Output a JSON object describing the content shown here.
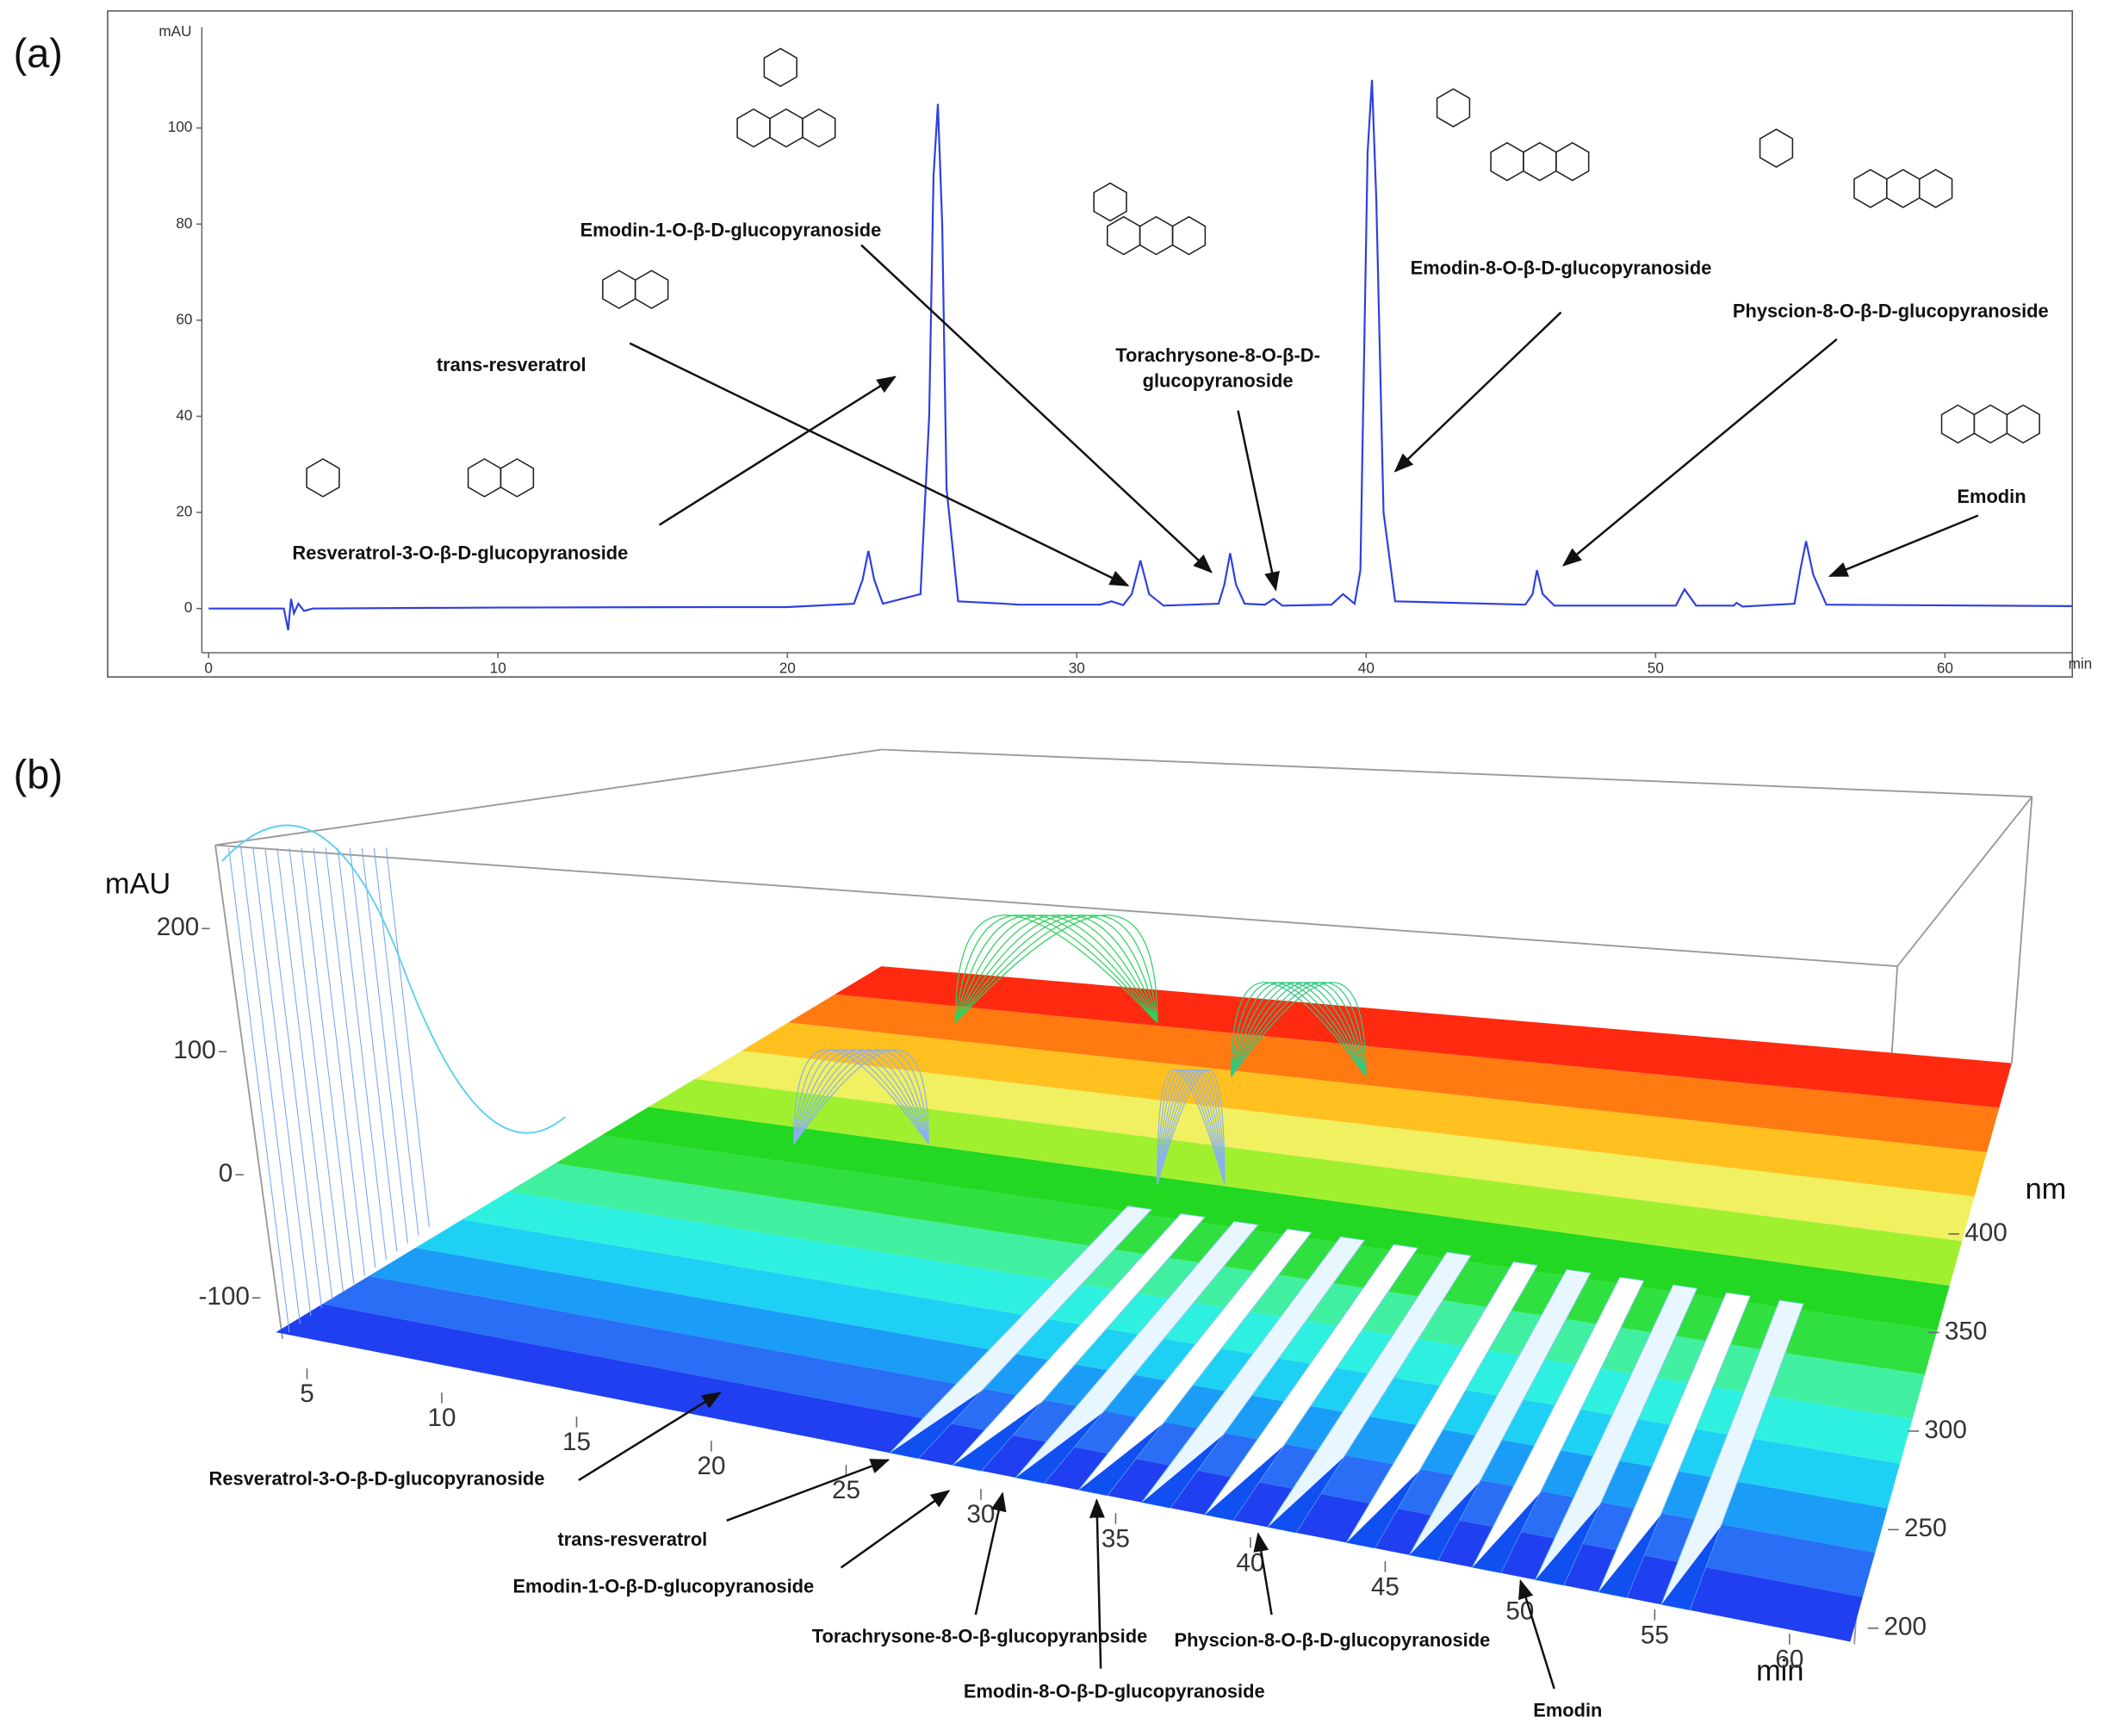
{
  "chart_data": [
    {
      "type": "line",
      "panel": "(a)",
      "y_label": "mAU",
      "x_label": "min",
      "xlim": [
        0,
        64.4
      ],
      "ylim": [
        -9.2,
        121
      ],
      "xticks": [
        0,
        10,
        20,
        30,
        40,
        50,
        60
      ],
      "yticks": [
        0,
        20,
        40,
        60,
        80,
        100
      ],
      "series": [
        {
          "color": "#2f3fe0",
          "x": [
            0,
            2.6,
            2.75,
            2.85,
            2.95,
            3.1,
            3.3,
            3.6,
            10,
            17.5,
            20,
            22.3,
            22.6,
            22.8,
            23.0,
            23.3,
            24.6,
            24.9,
            25.05,
            25.2,
            25.35,
            25.5,
            25.9,
            27.5,
            28,
            30.8,
            31.2,
            31.6,
            31.9,
            32.2,
            32.5,
            33,
            34.9,
            35.1,
            35.3,
            35.5,
            35.8,
            36.5,
            36.8,
            37.1,
            38.8,
            39.2,
            39.6,
            39.8,
            40.05,
            40.2,
            40.35,
            40.6,
            41,
            45.5,
            45.75,
            45.9,
            46.1,
            46.5,
            50.7,
            51,
            51.4,
            52.7,
            52.8,
            53,
            54.8,
            55.0,
            55.2,
            55.45,
            55.9,
            64.4
          ],
          "values": [
            0,
            0,
            -4.5,
            2,
            -1,
            1,
            -0.5,
            0,
            0.2,
            0.3,
            0.3,
            1,
            6,
            12,
            6,
            1,
            3,
            40,
            90,
            105,
            80,
            25,
            1.5,
            1,
            0.8,
            0.8,
            1.5,
            0.7,
            3,
            10,
            3,
            0.6,
            1,
            5,
            11.5,
            5,
            1,
            0.8,
            2,
            0.6,
            0.8,
            3,
            1,
            8,
            95,
            110,
            85,
            20,
            1.5,
            0.8,
            3,
            8,
            3,
            0.6,
            0.6,
            4,
            0.6,
            0.6,
            1.2,
            0.4,
            1,
            8,
            14,
            7,
            0.8,
            0.5
          ]
        }
      ],
      "annotations": [
        {
          "text": [
            "Resveratrol-3-O-β-D-glucopyranoside"
          ]
        },
        {
          "text": [
            "trans-resveratrol"
          ]
        },
        {
          "text": [
            "Emodin-1-O-β-D-glucopyranoside"
          ]
        },
        {
          "text": [
            "Torachrysone-8-O-β-D-",
            "glucopyranoside"
          ]
        },
        {
          "text": [
            "Emodin-8-O-β-D-glucopyranoside"
          ]
        },
        {
          "text": [
            "Physcion-8-O-β-D-glucopyranoside"
          ]
        },
        {
          "text": [
            "Emodin"
          ]
        }
      ]
    },
    {
      "type": "surface3d",
      "panel": "(b)",
      "y_label": "mAU",
      "x_label": "min",
      "z_label": "nm",
      "xlim": [
        0,
        65
      ],
      "ylim": [
        -150,
        250
      ],
      "zlim": [
        200,
        400
      ],
      "xticks": [
        5,
        10,
        15,
        20,
        25,
        30,
        35,
        40,
        45,
        50,
        55,
        60
      ],
      "yticks": [
        -100,
        0,
        100,
        200
      ],
      "zticks": [
        200,
        250,
        300,
        350,
        400
      ],
      "annotations": [
        {
          "text": [
            "Resveratrol-3-O-β-D-glucopyranoside"
          ]
        },
        {
          "text": [
            "trans-resveratrol"
          ]
        },
        {
          "text": [
            "Emodin-1-O-β-D-glucopyranoside"
          ]
        },
        {
          "text": [
            "Torachrysone-8-O-β-glucopyranoside"
          ]
        },
        {
          "text": [
            "Emodin-8-O-β-D-glucopyranoside"
          ]
        },
        {
          "text": [
            "Physcion-8-O-β-D-glucopyranoside"
          ]
        },
        {
          "text": [
            "Emodin"
          ]
        }
      ]
    }
  ]
}
